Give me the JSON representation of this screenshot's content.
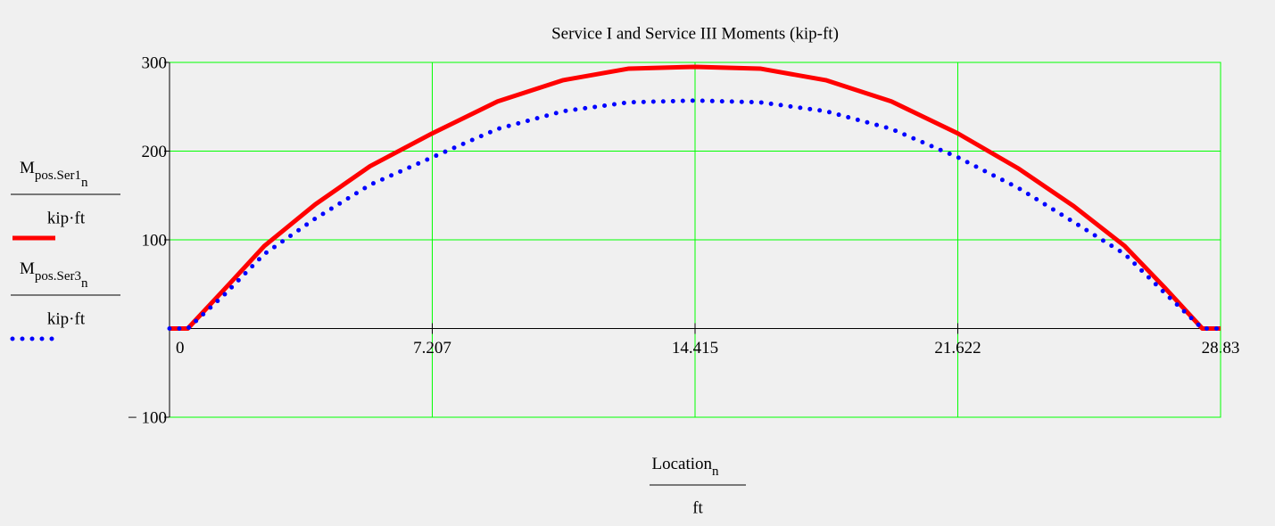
{
  "chart_data": {
    "type": "line",
    "title": "Service I and Service III Moments (kip-ft)",
    "x_label": {
      "base": "Location",
      "sub": "n",
      "unit": "ft"
    },
    "x": [
      0,
      0.5,
      1.5,
      2.6,
      4,
      5.5,
      7.207,
      9,
      10.8,
      12.6,
      14.415,
      16.2,
      18,
      19.8,
      21.622,
      23.3,
      24.8,
      26.2,
      27.3,
      28.33,
      28.83
    ],
    "series": [
      {
        "name": "M",
        "name_sub": "pos.Ser1",
        "name_subsub": "n",
        "unit": "kip·ft",
        "color": "#ff0000",
        "style": "solid",
        "values": [
          0,
          0,
          44,
          93,
          140,
          183,
          220,
          256,
          280,
          293,
          295,
          293,
          280,
          256,
          220,
          180,
          138,
          93,
          46,
          0,
          0
        ]
      },
      {
        "name": "M",
        "name_sub": "pos.Ser3",
        "name_subsub": "n",
        "unit": "kip·ft",
        "color": "#0000ff",
        "style": "dotted",
        "values": [
          0,
          0,
          38,
          84,
          124,
          162,
          193,
          225,
          245,
          255,
          257,
          255,
          245,
          225,
          193,
          158,
          120,
          84,
          40,
          0,
          0
        ]
      }
    ],
    "xlim": [
      0,
      28.83
    ],
    "xticks": [
      0,
      7.207,
      14.415,
      21.622,
      28.83
    ],
    "ylim": [
      -100,
      300
    ],
    "yticks": [
      {
        "value": -100,
        "label": "− 100"
      },
      100,
      200,
      300
    ],
    "grid": true,
    "grid_color": "#00ff00"
  }
}
